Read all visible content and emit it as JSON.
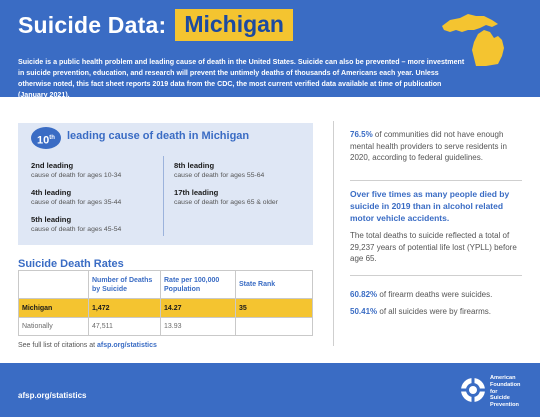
{
  "header": {
    "title": "Suicide Data:",
    "state": "Michigan",
    "intro": "Suicide is a public health problem and leading cause of death in the United States. Suicide can also be prevented – more investment in suicide prevention, education, and research will prevent the untimely deaths of thousands of Americans each year. Unless otherwise noted, this fact sheet reports 2019 data from the CDC, the most current verified data available at time of publication (January 2021)."
  },
  "rank_box": {
    "badge_number": "10",
    "badge_suffix": "th",
    "title": "leading cause of death in Michigan",
    "causes": [
      {
        "rank": "2nd leading",
        "desc": "cause of death for ages 10-34"
      },
      {
        "rank": "4th leading",
        "desc": "cause of death for ages 35-44"
      },
      {
        "rank": "5th leading",
        "desc": "cause of death for ages 45-54"
      },
      {
        "rank": "8th leading",
        "desc": "cause of death for ages 55-64"
      },
      {
        "rank": "17th leading",
        "desc": "cause of death for ages 65 & older"
      }
    ]
  },
  "rates": {
    "title": "Suicide Death Rates",
    "headers": [
      "",
      "Number of Deaths by Suicide",
      "Rate per 100,000 Population",
      "State Rank"
    ],
    "rows": [
      [
        "Michigan",
        "1,472",
        "14.27",
        "35"
      ],
      [
        "Nationally",
        "47,511",
        "13.93",
        ""
      ]
    ]
  },
  "citations": {
    "prefix": "See full list of citations at",
    "link": "afsp.org/statistics"
  },
  "right": {
    "stat1_pct": "76.5%",
    "stat1_text": "of communities did not have enough mental health providers to serve residents in 2020, according to federal guidelines.",
    "bold_stat": "Over five times as many people died by suicide in 2019 than in alcohol related motor vehicle accidents.",
    "ypll_text": "The total deaths to suicide reflected a total of 29,237 years of potential life lost (YPLL) before age 65.",
    "stat2_pct": "60.82%",
    "stat2_text": "of firearm deaths were suicides.",
    "stat3_pct": "50.41%",
    "stat3_text": "of all suicides were by firearms."
  },
  "footer": {
    "url": "afsp.org/statistics",
    "org_name_1": "American",
    "org_name_2": "Foundation",
    "org_name_3": "for",
    "org_name_4": "Suicide",
    "org_name_5": "Prevention"
  },
  "colors": {
    "brand_blue": "#3a6cc4",
    "highlight_yellow": "#f4c430",
    "panel_blue": "#dfe7f5"
  }
}
